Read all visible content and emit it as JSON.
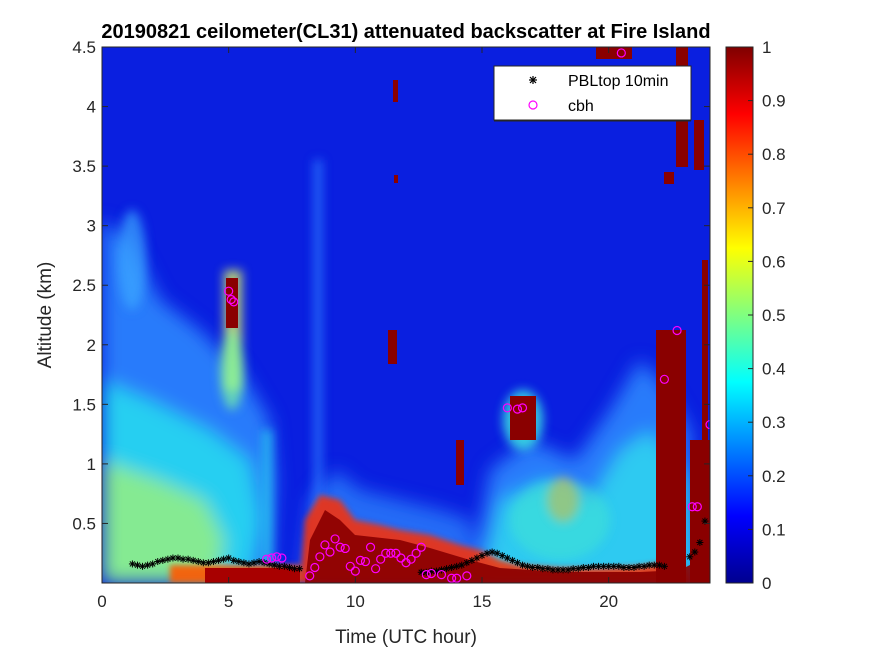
{
  "chart_data": {
    "type": "heatmap",
    "title": "20190821 ceilometer(CL31) attenuated backscatter at Fire Island",
    "xlabel": "Time (UTC hour)",
    "ylabel": "Altitude (km)",
    "xlim": [
      0,
      24
    ],
    "ylim": [
      0,
      4.5
    ],
    "xticks": [
      0,
      5,
      10,
      15,
      20
    ],
    "xtick_labels": [
      "0",
      "5",
      "10",
      "15",
      "20"
    ],
    "yticks": [
      0.5,
      1,
      1.5,
      2,
      2.5,
      3,
      3.5,
      4,
      4.5
    ],
    "ytick_labels": [
      "0.5",
      "1",
      "1.5",
      "2",
      "2.5",
      "3",
      "3.5",
      "4",
      "4.5"
    ],
    "colorbar": {
      "colormap": "jet",
      "range": [
        0,
        1
      ],
      "ticks": [
        0,
        0.1,
        0.2,
        0.3,
        0.4,
        0.5,
        0.6,
        0.7,
        0.8,
        0.9,
        1
      ],
      "tick_labels": [
        "0",
        "0.1",
        "0.2",
        "0.3",
        "0.4",
        "0.5",
        "0.6",
        "0.7",
        "0.8",
        "0.9",
        "1"
      ]
    },
    "legend": {
      "position": "top-right",
      "entries": [
        {
          "label": "PBLtop 10min",
          "marker": "asterisk",
          "color": "#000000"
        },
        {
          "label": "cbh",
          "marker": "circle",
          "color": "#ff00ff"
        }
      ]
    },
    "series": [
      {
        "name": "PBLtop 10min",
        "marker": "asterisk",
        "color": "#000000",
        "x": [
          1.2,
          1.4,
          1.6,
          1.8,
          2.0,
          2.2,
          2.4,
          2.6,
          2.8,
          3.0,
          3.2,
          3.4,
          3.6,
          3.8,
          4.0,
          4.2,
          4.4,
          4.6,
          4.8,
          5.0,
          5.2,
          5.4,
          5.6,
          5.8,
          6.0,
          6.2,
          6.4,
          6.6,
          6.8,
          7.0,
          7.2,
          7.4,
          7.6,
          7.8,
          12.6,
          12.8,
          13.0,
          13.2,
          13.4,
          13.6,
          13.8,
          14.0,
          14.2,
          14.4,
          14.6,
          14.8,
          15.0,
          15.2,
          15.4,
          15.6,
          15.8,
          16.0,
          16.2,
          16.4,
          16.6,
          16.8,
          17.0,
          17.2,
          17.4,
          17.6,
          17.8,
          18.0,
          18.2,
          18.4,
          18.6,
          18.8,
          19.0,
          19.2,
          19.4,
          19.6,
          19.8,
          20.0,
          20.2,
          20.4,
          20.6,
          20.8,
          21.0,
          21.2,
          21.4,
          21.6,
          21.8,
          22.0,
          22.2,
          23.2,
          23.4,
          23.6,
          23.8
        ],
        "y": [
          0.16,
          0.15,
          0.14,
          0.15,
          0.16,
          0.18,
          0.19,
          0.2,
          0.21,
          0.21,
          0.2,
          0.2,
          0.19,
          0.18,
          0.17,
          0.17,
          0.18,
          0.19,
          0.2,
          0.21,
          0.19,
          0.18,
          0.17,
          0.16,
          0.17,
          0.18,
          0.17,
          0.16,
          0.15,
          0.14,
          0.14,
          0.13,
          0.12,
          0.12,
          0.09,
          0.09,
          0.1,
          0.1,
          0.11,
          0.12,
          0.13,
          0.14,
          0.15,
          0.17,
          0.19,
          0.21,
          0.23,
          0.25,
          0.26,
          0.25,
          0.23,
          0.21,
          0.19,
          0.17,
          0.15,
          0.14,
          0.13,
          0.13,
          0.12,
          0.12,
          0.11,
          0.11,
          0.11,
          0.11,
          0.12,
          0.12,
          0.13,
          0.13,
          0.14,
          0.14,
          0.14,
          0.14,
          0.14,
          0.14,
          0.13,
          0.13,
          0.13,
          0.14,
          0.14,
          0.15,
          0.15,
          0.15,
          0.14,
          0.22,
          0.26,
          0.34,
          0.52
        ]
      },
      {
        "name": "cbh",
        "marker": "circle",
        "color": "#ff00ff",
        "x": [
          5.0,
          5.1,
          5.2,
          6.5,
          6.7,
          6.9,
          7.1,
          8.2,
          8.4,
          8.6,
          8.8,
          9.0,
          9.2,
          9.4,
          9.6,
          9.8,
          10.0,
          10.2,
          10.4,
          10.6,
          10.8,
          11.0,
          11.2,
          11.4,
          11.6,
          11.8,
          12.0,
          12.2,
          12.4,
          12.6,
          12.8,
          13.0,
          13.4,
          13.8,
          14.0,
          14.4,
          16.0,
          16.4,
          16.6,
          20.5,
          22.2,
          22.7,
          23.3,
          23.5,
          24.0
        ],
        "y": [
          2.45,
          2.38,
          2.36,
          0.2,
          0.21,
          0.22,
          0.21,
          0.06,
          0.13,
          0.22,
          0.32,
          0.26,
          0.37,
          0.3,
          0.29,
          0.14,
          0.1,
          0.19,
          0.18,
          0.3,
          0.12,
          0.2,
          0.25,
          0.25,
          0.25,
          0.21,
          0.17,
          0.2,
          0.25,
          0.3,
          0.07,
          0.08,
          0.07,
          0.04,
          0.04,
          0.06,
          1.47,
          1.46,
          1.47,
          4.45,
          1.71,
          2.12,
          0.64,
          0.64,
          1.33
        ]
      }
    ]
  }
}
